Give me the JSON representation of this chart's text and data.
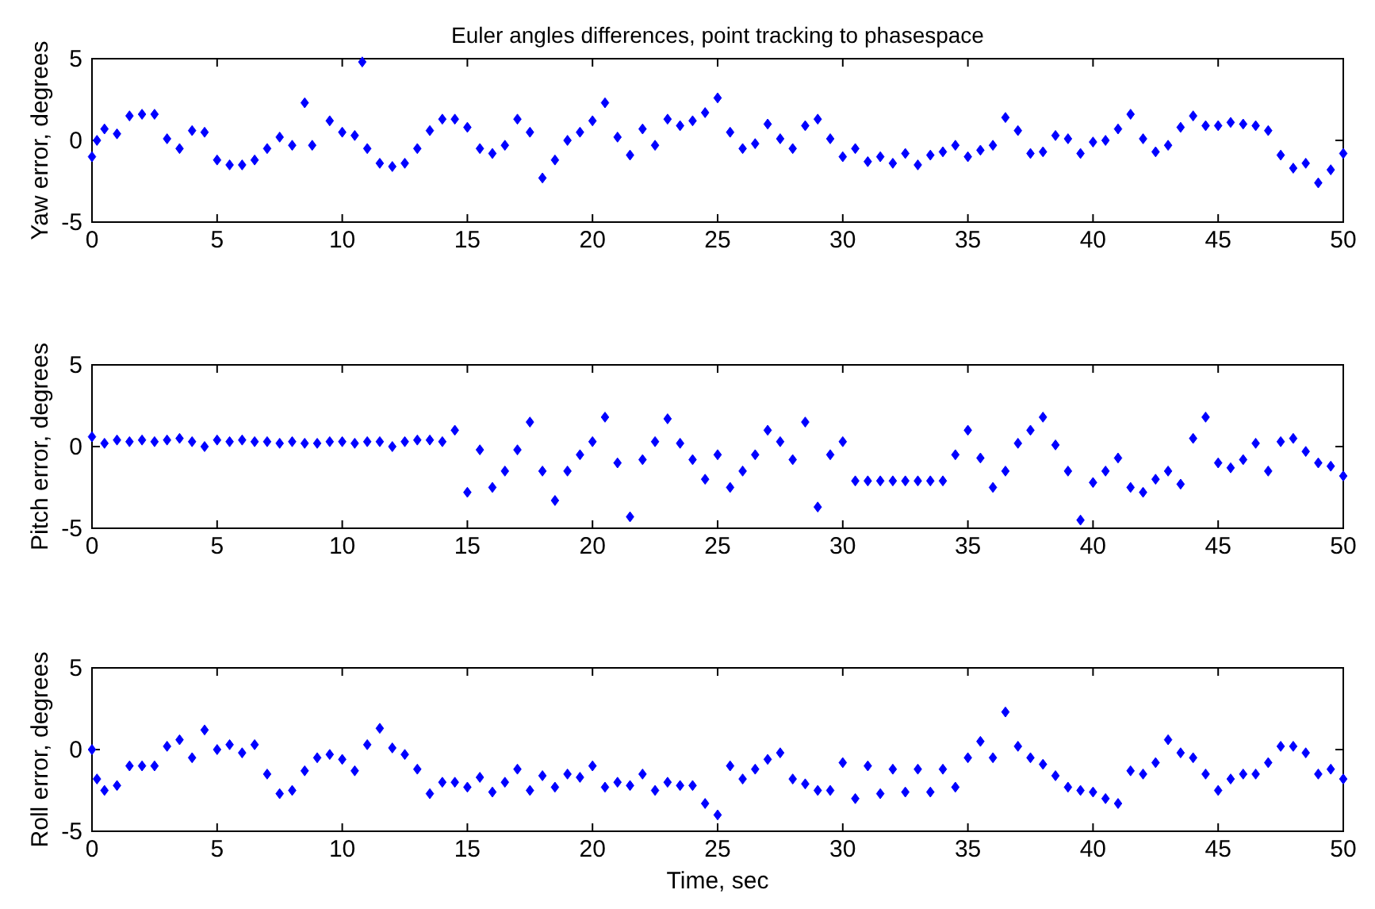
{
  "chart_data": [
    {
      "type": "scatter",
      "title": "Euler angles differences, point tracking to phasespace",
      "ylabel": "Yaw error, degrees",
      "xlim": [
        0,
        50
      ],
      "xticks": [
        0,
        5,
        10,
        15,
        20,
        25,
        30,
        35,
        40,
        45,
        50
      ],
      "ylim": [
        -5,
        5
      ],
      "yticks": [
        -5,
        0,
        5
      ],
      "marker": "diamond",
      "series": [
        {
          "color": "#0000ff",
          "x": [
            0,
            0.2,
            0.5,
            1,
            1.5,
            2,
            2.5,
            3,
            3.5,
            4,
            4.5,
            5,
            5.5,
            6,
            6.5,
            7,
            7.5,
            8,
            8.5,
            8.8,
            9.5,
            10,
            10.5,
            10.8,
            11,
            11.5,
            12,
            12.5,
            13,
            13.5,
            14,
            14.5,
            15,
            15.5,
            16,
            16.5,
            17,
            17.5,
            18,
            18.5,
            19,
            19.5,
            20,
            20.5,
            21,
            21.5,
            22,
            22.5,
            23,
            23.5,
            24,
            24.5,
            25,
            25.5,
            26,
            26.5,
            27,
            27.5,
            28,
            28.5,
            29,
            29.5,
            30,
            30.5,
            31,
            31.5,
            32,
            32.5,
            33,
            33.5,
            34,
            34.5,
            35,
            35.5,
            36,
            36.5,
            37,
            37.5,
            38,
            38.5,
            39,
            39.5,
            40,
            40.5,
            41,
            41.5,
            42,
            42.5,
            43,
            43.5,
            44,
            44.5,
            45,
            45.5,
            46,
            46.5,
            47,
            47.5,
            48,
            48.5,
            49,
            49.5,
            50
          ],
          "values": [
            -1,
            0,
            0.7,
            0.4,
            1.5,
            1.6,
            1.6,
            0.1,
            -0.5,
            0.6,
            0.5,
            -1.2,
            -1.5,
            -1.5,
            -1.2,
            -0.5,
            0.2,
            -0.3,
            2.3,
            -0.3,
            1.2,
            0.5,
            0.3,
            4.8,
            -0.5,
            -1.4,
            -1.6,
            -1.4,
            -0.5,
            0.6,
            1.3,
            1.3,
            0.8,
            -0.5,
            -0.8,
            -0.3,
            1.3,
            0.5,
            -2.3,
            -1.2,
            0,
            0.5,
            1.2,
            2.3,
            0.2,
            -0.9,
            0.7,
            -0.3,
            1.3,
            0.9,
            1.2,
            1.7,
            2.6,
            0.5,
            -0.5,
            -0.2,
            1,
            0.1,
            -0.5,
            0.9,
            1.3,
            0.1,
            -1,
            -0.5,
            -1.3,
            -1,
            -1.4,
            -0.8,
            -1.5,
            -0.9,
            -0.7,
            -0.3,
            -1,
            -0.6,
            -0.3,
            1.4,
            0.6,
            -0.8,
            -0.7,
            0.3,
            0.1,
            -0.8,
            -0.1,
            0,
            0.7,
            1.6,
            0.1,
            -0.7,
            -0.3,
            0.8,
            1.5,
            0.9,
            0.9,
            1.1,
            1,
            0.9,
            0.6,
            -0.9,
            -1.7,
            -1.4,
            -2.6,
            -1.8,
            -0.8
          ]
        }
      ]
    },
    {
      "type": "scatter",
      "ylabel": "Pitch error, degrees",
      "xlim": [
        0,
        50
      ],
      "xticks": [
        0,
        5,
        10,
        15,
        20,
        25,
        30,
        35,
        40,
        45,
        50
      ],
      "ylim": [
        -5,
        5
      ],
      "yticks": [
        -5,
        0,
        5
      ],
      "marker": "diamond",
      "series": [
        {
          "color": "#0000ff",
          "x": [
            0,
            0.5,
            1,
            1.5,
            2,
            2.5,
            3,
            3.5,
            4,
            4.5,
            5,
            5.5,
            6,
            6.5,
            7,
            7.5,
            8,
            8.5,
            9,
            9.5,
            10,
            10.5,
            11,
            11.5,
            12,
            12.5,
            13,
            13.5,
            14,
            14.5,
            15,
            15.5,
            16,
            16.5,
            17,
            17.5,
            18,
            18.5,
            19,
            19.5,
            20,
            20.5,
            21,
            21.5,
            22,
            22.5,
            23,
            23.5,
            24,
            24.5,
            25,
            25.5,
            26,
            26.5,
            27,
            27.5,
            28,
            28.5,
            29,
            29.5,
            30,
            30.5,
            31,
            31.5,
            32,
            32.5,
            33,
            33.5,
            34,
            34.5,
            35,
            35.5,
            36,
            36.5,
            37,
            37.5,
            38,
            38.5,
            39,
            39.5,
            40,
            40.5,
            41,
            41.5,
            42,
            42.5,
            43,
            43.5,
            44,
            44.5,
            45,
            45.5,
            46,
            46.5,
            47,
            47.5,
            48,
            48.5,
            49,
            49.5,
            50
          ],
          "values": [
            0.6,
            0.2,
            0.4,
            0.3,
            0.4,
            0.3,
            0.4,
            0.5,
            0.3,
            0,
            0.4,
            0.3,
            0.4,
            0.3,
            0.3,
            0.2,
            0.3,
            0.2,
            0.2,
            0.3,
            0.3,
            0.2,
            0.3,
            0.3,
            0,
            0.3,
            0.4,
            0.4,
            0.3,
            1,
            -2.8,
            -0.2,
            -2.5,
            -1.5,
            -0.2,
            1.5,
            -1.5,
            -3.3,
            -1.5,
            -0.5,
            0.3,
            1.8,
            -1,
            -4.3,
            -0.8,
            0.3,
            1.7,
            0.2,
            -0.8,
            -2,
            -0.5,
            -2.5,
            -1.5,
            -0.5,
            1,
            0.3,
            -0.8,
            1.5,
            -3.7,
            -0.5,
            0.3,
            -2.1,
            -2.1,
            -2.1,
            -2.1,
            -2.1,
            -2.1,
            -2.1,
            -2.1,
            -0.5,
            1,
            -0.7,
            -2.5,
            -1.5,
            0.2,
            1,
            1.8,
            0.1,
            -1.5,
            -4.5,
            -2.2,
            -1.5,
            -0.7,
            -2.5,
            -2.8,
            -2,
            -1.5,
            -2.3,
            0.5,
            1.8,
            -1,
            -1.3,
            -0.8,
            0.2,
            -1.5,
            0.3,
            0.5,
            -0.3,
            -1,
            -1.2,
            -1.8
          ]
        }
      ]
    },
    {
      "type": "scatter",
      "ylabel": "Roll error, degrees",
      "xlabel": "Time, sec",
      "xlim": [
        0,
        50
      ],
      "xticks": [
        0,
        5,
        10,
        15,
        20,
        25,
        30,
        35,
        40,
        45,
        50
      ],
      "ylim": [
        -5,
        5
      ],
      "yticks": [
        -5,
        0,
        5
      ],
      "marker": "diamond",
      "series": [
        {
          "color": "#0000ff",
          "x": [
            0,
            0.2,
            0.5,
            1,
            1.5,
            2,
            2.5,
            3,
            3.5,
            4,
            4.5,
            5,
            5.5,
            6,
            6.5,
            7,
            7.5,
            8,
            8.5,
            9,
            9.5,
            10,
            10.5,
            11,
            11.5,
            12,
            12.5,
            13,
            13.5,
            14,
            14.5,
            15,
            15.5,
            16,
            16.5,
            17,
            17.5,
            18,
            18.5,
            19,
            19.5,
            20,
            20.5,
            21,
            21.5,
            22,
            22.5,
            23,
            23.5,
            24,
            24.5,
            25,
            25.5,
            26,
            26.5,
            27,
            27.5,
            28,
            28.5,
            29,
            29.5,
            30,
            30.5,
            31,
            31.5,
            32,
            32.5,
            33,
            33.5,
            34,
            34.5,
            35,
            35.5,
            36,
            36.5,
            37,
            37.5,
            38,
            38.5,
            39,
            39.5,
            40,
            40.5,
            41,
            41.5,
            42,
            42.5,
            43,
            43.5,
            44,
            44.5,
            45,
            45.5,
            46,
            46.5,
            47,
            47.5,
            48,
            48.5,
            49,
            49.5,
            50
          ],
          "values": [
            0,
            -1.8,
            -2.5,
            -2.2,
            -1,
            -1,
            -1,
            0.2,
            0.6,
            -0.5,
            1.2,
            0,
            0.3,
            -0.2,
            0.3,
            -1.5,
            -2.7,
            -2.5,
            -1.3,
            -0.5,
            -0.3,
            -0.6,
            -1.3,
            0.3,
            1.3,
            0.1,
            -0.3,
            -1.2,
            -2.7,
            -2,
            -2,
            -2.3,
            -1.7,
            -2.6,
            -2,
            -1.2,
            -2.5,
            -1.6,
            -2.3,
            -1.5,
            -1.7,
            -1,
            -2.3,
            -2,
            -2.2,
            -1.5,
            -2.5,
            -2,
            -2.2,
            -2.2,
            -3.3,
            -4,
            -1,
            -1.8,
            -1.2,
            -0.6,
            -0.2,
            -1.8,
            -2.1,
            -2.5,
            -2.5,
            -0.8,
            -3,
            -1,
            -2.7,
            -1.2,
            -2.6,
            -1.2,
            -2.6,
            -1.2,
            -2.3,
            -0.5,
            0.5,
            -0.5,
            2.3,
            0.2,
            -0.5,
            -0.9,
            -1.6,
            -2.3,
            -2.5,
            -2.6,
            -3,
            -3.3,
            -1.3,
            -1.5,
            -0.8,
            0.6,
            -0.2,
            -0.5,
            -1.5,
            -2.5,
            -1.8,
            -1.5,
            -1.5,
            -0.8,
            0.2,
            0.2,
            -0.2,
            -1.5,
            -1.2,
            -1.8
          ]
        }
      ]
    }
  ]
}
